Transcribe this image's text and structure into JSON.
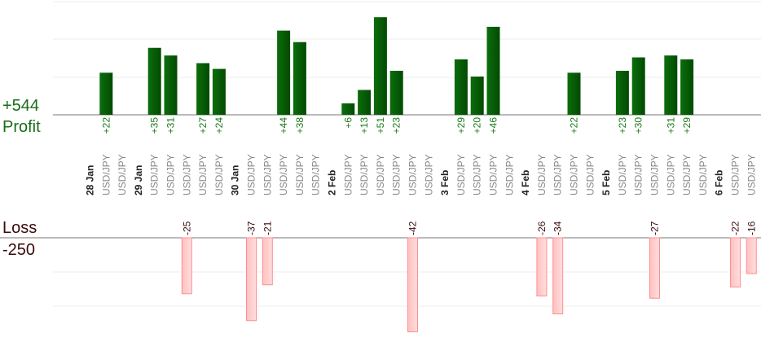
{
  "summary": {
    "profit_total": "+544",
    "profit_label": "Profit",
    "loss_label": "Loss",
    "loss_total": "-250"
  },
  "colors": {
    "profit_bar": "#0b6e0b",
    "profit_bar_dark": "#034a03",
    "profit_text": "#1a7a1a",
    "loss_bar": "#ffc0c0",
    "loss_bar_edge": "#ff8f8f",
    "loss_text": "#3a0a0a",
    "axis": "#777777",
    "grid": "#ececec",
    "date_text": "#222222",
    "pair_text": "#888888"
  },
  "chart_data": {
    "type": "bar",
    "title": "",
    "xlabel": "",
    "ylabel": "",
    "profit_ylim": [
      0,
      46
    ],
    "loss_ylim": [
      -42,
      0
    ],
    "grid": true,
    "columns": [
      {
        "date": "28 Jan"
      },
      {
        "pair": "USD/JPY",
        "value": 22,
        "label": "+22"
      },
      {
        "pair": "USD/JPY"
      },
      {
        "date": "29 Jan"
      },
      {
        "pair": "USD/JPY",
        "value": 35,
        "label": "+35"
      },
      {
        "pair": "USD/JPY",
        "value": 31,
        "label": "+31"
      },
      {
        "pair": "USD/JPY",
        "value": -25,
        "label": "-25"
      },
      {
        "pair": "USD/JPY",
        "value": 27,
        "label": "+27"
      },
      {
        "pair": "USD/JPY",
        "value": 24,
        "label": "+24"
      },
      {
        "date": "30 Jan"
      },
      {
        "pair": "USD/JPY",
        "value": -37,
        "label": "-37"
      },
      {
        "pair": "USD/JPY",
        "value": -21,
        "label": "-21"
      },
      {
        "pair": "USD/JPY",
        "value": 44,
        "label": "+44"
      },
      {
        "pair": "USD/JPY",
        "value": 38,
        "label": "+38"
      },
      {
        "pair": "USD/JPY"
      },
      {
        "date": "2 Feb"
      },
      {
        "pair": "USD/JPY",
        "value": 6,
        "label": "+6"
      },
      {
        "pair": "USD/JPY",
        "value": 13,
        "label": "+13"
      },
      {
        "pair": "USD/JPY",
        "value": 51,
        "label": "+51"
      },
      {
        "pair": "USD/JPY",
        "value": 23,
        "label": "+23"
      },
      {
        "pair": "USD/JPY",
        "value": -42,
        "label": "-42"
      },
      {
        "pair": "USD/JPY"
      },
      {
        "date": "3 Feb"
      },
      {
        "pair": "USD/JPY",
        "value": 29,
        "label": "+29"
      },
      {
        "pair": "USD/JPY",
        "value": 20,
        "label": "+20"
      },
      {
        "pair": "USD/JPY",
        "value": 46,
        "label": "+46"
      },
      {
        "pair": "USD/JPY"
      },
      {
        "date": "4 Feb"
      },
      {
        "pair": "USD/JPY",
        "value": -26,
        "label": "-26"
      },
      {
        "pair": "USD/JPY",
        "value": -34,
        "label": "-34"
      },
      {
        "pair": "USD/JPY",
        "value": 22,
        "label": "+22"
      },
      {
        "pair": "USD/JPY"
      },
      {
        "date": "5 Feb"
      },
      {
        "pair": "USD/JPY",
        "value": 23,
        "label": "+23"
      },
      {
        "pair": "USD/JPY",
        "value": 30,
        "label": "+30"
      },
      {
        "pair": "USD/JPY",
        "value": -27,
        "label": "-27"
      },
      {
        "pair": "USD/JPY",
        "value": 31,
        "label": "+31"
      },
      {
        "pair": "USD/JPY",
        "value": 29,
        "label": "+29"
      },
      {
        "pair": "USD/JPY"
      },
      {
        "date": "6 Feb"
      },
      {
        "pair": "USD/JPY",
        "value": -22,
        "label": "-22"
      },
      {
        "pair": "USD/JPY",
        "value": -16,
        "label": "-16"
      }
    ]
  }
}
